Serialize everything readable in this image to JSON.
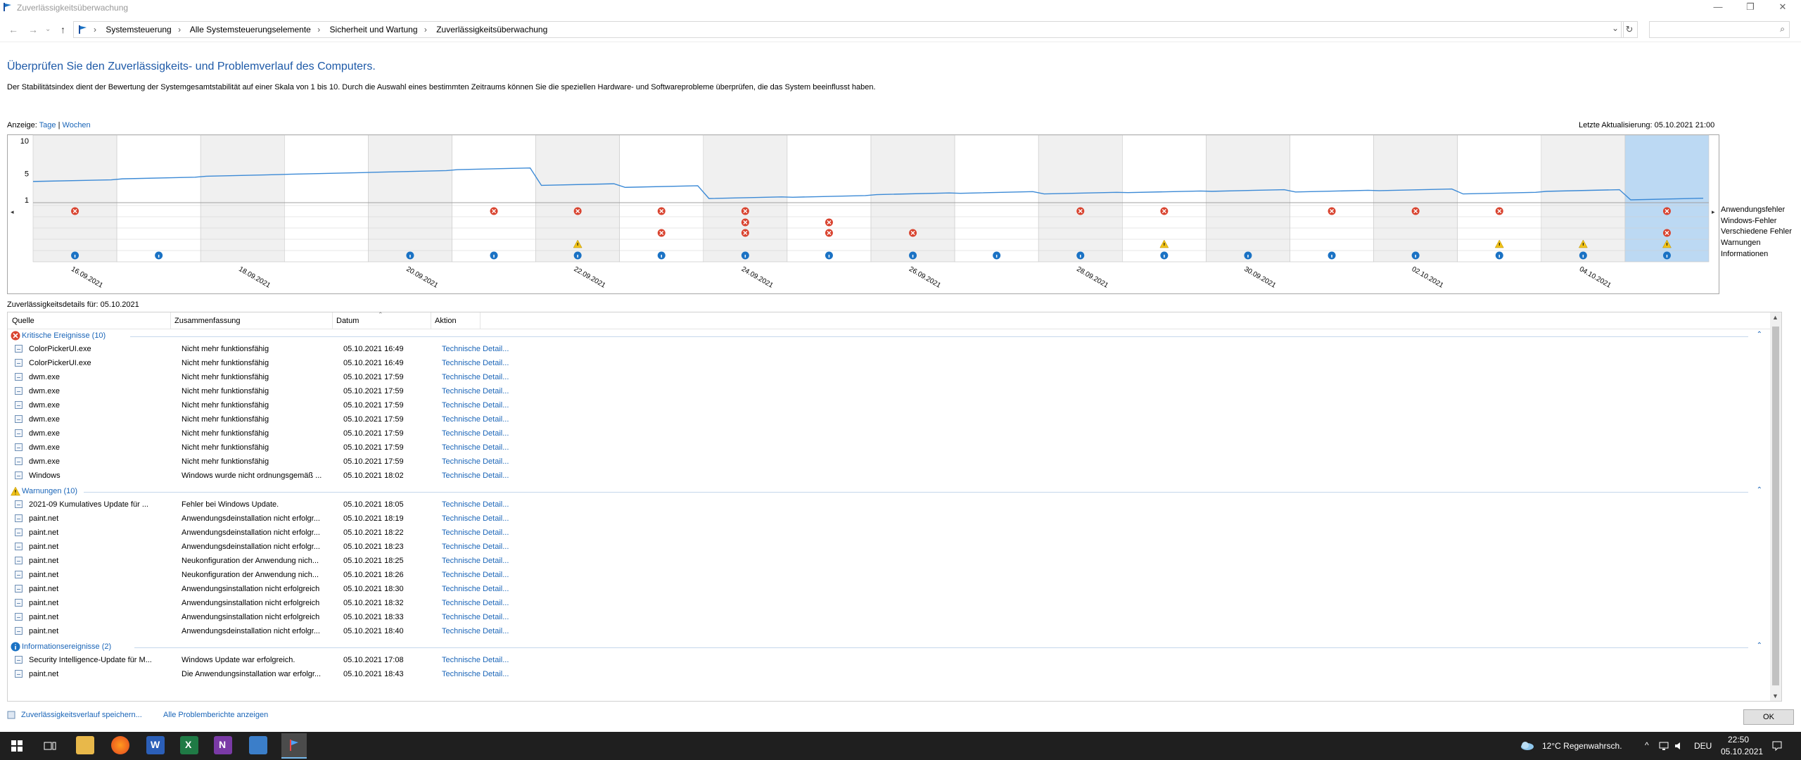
{
  "window": {
    "title": "Zuverlässigkeitsüberwachung",
    "minimize": "—",
    "maximize": "❐",
    "close": "✕"
  },
  "nav": {
    "back": "←",
    "forward": "→",
    "down": "⌄",
    "up": "↑",
    "dropdown": "⌄",
    "refresh": "↻",
    "search_glyph": "⌕",
    "crumbs": [
      "Systemsteuerung",
      "Alle Systemsteuerungselemente",
      "Sicherheit und Wartung",
      "Zuverlässigkeitsüberwachung"
    ]
  },
  "headline": "Überprüfen Sie den Zuverlässigkeits- und Problemverlauf des Computers.",
  "description": "Der Stabilitätsindex dient der Bewertung der Systemgesamtstabilität auf einer Skala von 1 bis 10. Durch die Auswahl eines bestimmten Zeitraums können Sie die speziellen Hardware- und Softwareprobleme überprüfen, die das System beeinflusst haben.",
  "view": {
    "label": "Anzeige:",
    "days": "Tage",
    "sep": "|",
    "weeks": "Wochen"
  },
  "last_update": "Letzte Aktualisierung: 05.10.2021 21:00",
  "chart_data": {
    "type": "line",
    "yticks": [
      "10",
      "5",
      "1"
    ],
    "ylim": [
      1,
      10
    ],
    "dates": [
      "16.09.2021",
      "17.09.2021",
      "18.09.2021",
      "19.09.2021",
      "20.09.2021",
      "21.09.2021",
      "22.09.2021",
      "23.09.2021",
      "24.09.2021",
      "25.09.2021",
      "26.09.2021",
      "27.09.2021",
      "28.09.2021",
      "29.09.2021",
      "30.09.2021",
      "01.10.2021",
      "02.10.2021",
      "03.10.2021",
      "04.10.2021",
      "05.10.2021"
    ],
    "xtick_labels": [
      "16.09.2021",
      "18.09.2021",
      "20.09.2021",
      "22.09.2021",
      "24.09.2021",
      "26.09.2021",
      "28.09.2021",
      "30.09.2021",
      "02.10.2021",
      "04.10.2021"
    ],
    "stability_index": [
      3.8,
      4.2,
      4.6,
      4.9,
      5.2,
      5.6,
      3.2,
      2.9,
      1.2,
      1.4,
      1.8,
      2.0,
      1.9,
      2.1,
      2.3,
      2.2,
      2.4,
      1.9,
      2.3,
      1.0
    ],
    "selected": "05.10.2021",
    "rows": [
      "Anwendungsfehler",
      "Windows-Fehler",
      "Verschiedene Fehler",
      "Warnungen",
      "Informationen"
    ],
    "events": {
      "Anwendungsfehler": [
        1,
        0,
        0,
        0,
        0,
        1,
        1,
        1,
        1,
        0,
        0,
        0,
        1,
        1,
        0,
        1,
        1,
        1,
        0,
        1
      ],
      "Windows-Fehler": [
        0,
        0,
        0,
        0,
        0,
        0,
        0,
        0,
        1,
        1,
        0,
        0,
        0,
        0,
        0,
        0,
        0,
        0,
        0,
        0
      ],
      "Verschiedene Fehler": [
        0,
        0,
        0,
        0,
        0,
        0,
        0,
        1,
        1,
        1,
        1,
        0,
        0,
        0,
        0,
        0,
        0,
        0,
        0,
        1
      ],
      "Warnungen": [
        0,
        0,
        0,
        0,
        0,
        0,
        1,
        0,
        0,
        0,
        0,
        0,
        0,
        1,
        0,
        0,
        0,
        1,
        1,
        1
      ],
      "Informationen": [
        1,
        1,
        0,
        0,
        1,
        1,
        1,
        1,
        1,
        1,
        1,
        1,
        1,
        1,
        1,
        1,
        1,
        1,
        1,
        1
      ]
    },
    "colors": {
      "line": "#3c8ad6",
      "error": "#d9432f",
      "warning": "#f2c318",
      "info": "#1a72c4",
      "selected": "#bcd9f3",
      "shade": "#f0f0f0"
    }
  },
  "details_title": "Zuverlässigkeitsdetails für: 05.10.2021",
  "columns": [
    "Quelle",
    "Zusammenfassung",
    "Datum",
    "Aktion"
  ],
  "groups": [
    {
      "label": "Kritische Ereignisse (10)",
      "kind": "error",
      "rows": [
        [
          "ColorPickerUI.exe",
          "Nicht mehr funktionsfähig",
          "05.10.2021 16:49",
          "Technische Detail..."
        ],
        [
          "ColorPickerUI.exe",
          "Nicht mehr funktionsfähig",
          "05.10.2021 16:49",
          "Technische Detail..."
        ],
        [
          "dwm.exe",
          "Nicht mehr funktionsfähig",
          "05.10.2021 17:59",
          "Technische Detail..."
        ],
        [
          "dwm.exe",
          "Nicht mehr funktionsfähig",
          "05.10.2021 17:59",
          "Technische Detail..."
        ],
        [
          "dwm.exe",
          "Nicht mehr funktionsfähig",
          "05.10.2021 17:59",
          "Technische Detail..."
        ],
        [
          "dwm.exe",
          "Nicht mehr funktionsfähig",
          "05.10.2021 17:59",
          "Technische Detail..."
        ],
        [
          "dwm.exe",
          "Nicht mehr funktionsfähig",
          "05.10.2021 17:59",
          "Technische Detail..."
        ],
        [
          "dwm.exe",
          "Nicht mehr funktionsfähig",
          "05.10.2021 17:59",
          "Technische Detail..."
        ],
        [
          "dwm.exe",
          "Nicht mehr funktionsfähig",
          "05.10.2021 17:59",
          "Technische Detail..."
        ],
        [
          "Windows",
          "Windows wurde nicht ordnungsgemäß ...",
          "05.10.2021 18:02",
          "Technische Detail..."
        ]
      ]
    },
    {
      "label": "Warnungen (10)",
      "kind": "warning",
      "rows": [
        [
          "2021-09 Kumulatives Update für ...",
          "Fehler bei Windows Update.",
          "05.10.2021 18:05",
          "Technische Detail..."
        ],
        [
          "paint.net",
          "Anwendungsdeinstallation nicht erfolgr...",
          "05.10.2021 18:19",
          "Technische Detail..."
        ],
        [
          "paint.net",
          "Anwendungsdeinstallation nicht erfolgr...",
          "05.10.2021 18:22",
          "Technische Detail..."
        ],
        [
          "paint.net",
          "Anwendungsdeinstallation nicht erfolgr...",
          "05.10.2021 18:23",
          "Technische Detail..."
        ],
        [
          "paint.net",
          "Neukonfiguration der Anwendung nich...",
          "05.10.2021 18:25",
          "Technische Detail..."
        ],
        [
          "paint.net",
          "Neukonfiguration der Anwendung nich...",
          "05.10.2021 18:26",
          "Technische Detail..."
        ],
        [
          "paint.net",
          "Anwendungsinstallation nicht erfolgreich",
          "05.10.2021 18:30",
          "Technische Detail..."
        ],
        [
          "paint.net",
          "Anwendungsinstallation nicht erfolgreich",
          "05.10.2021 18:32",
          "Technische Detail..."
        ],
        [
          "paint.net",
          "Anwendungsinstallation nicht erfolgreich",
          "05.10.2021 18:33",
          "Technische Detail..."
        ],
        [
          "paint.net",
          "Anwendungsdeinstallation nicht erfolgr...",
          "05.10.2021 18:40",
          "Technische Detail..."
        ]
      ]
    },
    {
      "label": "Informationsereignisse (2)",
      "kind": "info",
      "rows": [
        [
          "Security Intelligence-Update für M...",
          "Windows Update war erfolgreich.",
          "05.10.2021 17:08",
          "Technische Detail..."
        ],
        [
          "paint.net",
          "Die Anwendungsinstallation war erfolgr...",
          "05.10.2021 18:43",
          "Technische Detail..."
        ]
      ]
    }
  ],
  "footer": {
    "save": "Zuverlässigkeitsverlauf speichern...",
    "all_reports": "Alle Problemberichte anzeigen",
    "ok": "OK"
  },
  "taskbar": {
    "weather": "12°C  Regenwahrsch.",
    "lang": "DEU",
    "time": "22:50",
    "date": "05.10.2021",
    "tray": "^"
  }
}
